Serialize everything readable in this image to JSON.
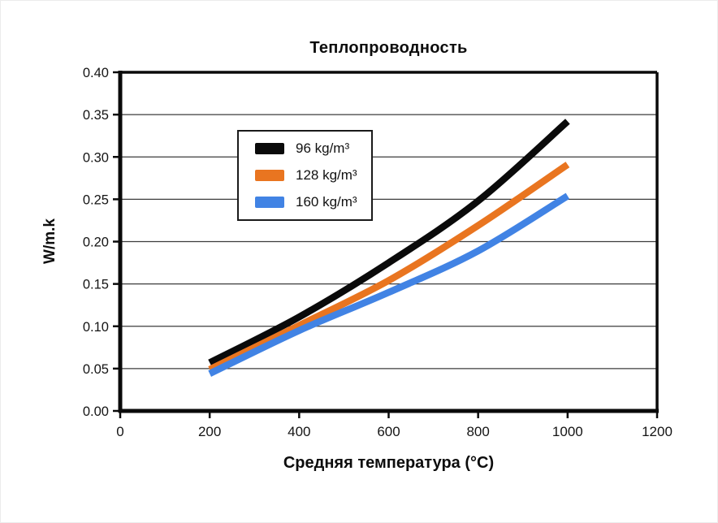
{
  "page": {
    "background": "#ffffff"
  },
  "chart_data": {
    "type": "line",
    "title": "Теплопроводность",
    "xlabel": "Средняя температура (°C)",
    "ylabel": "W/m.k",
    "xlim": [
      0,
      1200
    ],
    "ylim": [
      0,
      0.4
    ],
    "xticks": [
      "0",
      "200",
      "400",
      "600",
      "800",
      "1000",
      "1200"
    ],
    "yticks": [
      "0.00",
      "0.05",
      "0.10",
      "0.15",
      "0.20",
      "0.25",
      "0.30",
      "0.35",
      "0.40"
    ],
    "grid": "horizontal",
    "legend_position": "inside-upper-left",
    "x": [
      200,
      400,
      600,
      800,
      1000
    ],
    "series": [
      {
        "name": "96 kg/m³",
        "color": "#0a0a0a",
        "values": [
          0.057,
          0.111,
          0.175,
          0.248,
          0.342
        ]
      },
      {
        "name": "128 kg/m³",
        "color": "#e97520",
        "values": [
          0.049,
          0.101,
          0.154,
          0.219,
          0.291
        ]
      },
      {
        "name": "160 kg/m³",
        "color": "#4183e4",
        "values": [
          0.044,
          0.095,
          0.14,
          0.189,
          0.254
        ]
      }
    ],
    "colors": {
      "grid": "#3c3c3c",
      "frame": "#0a0a0a",
      "text": "#141414"
    }
  }
}
